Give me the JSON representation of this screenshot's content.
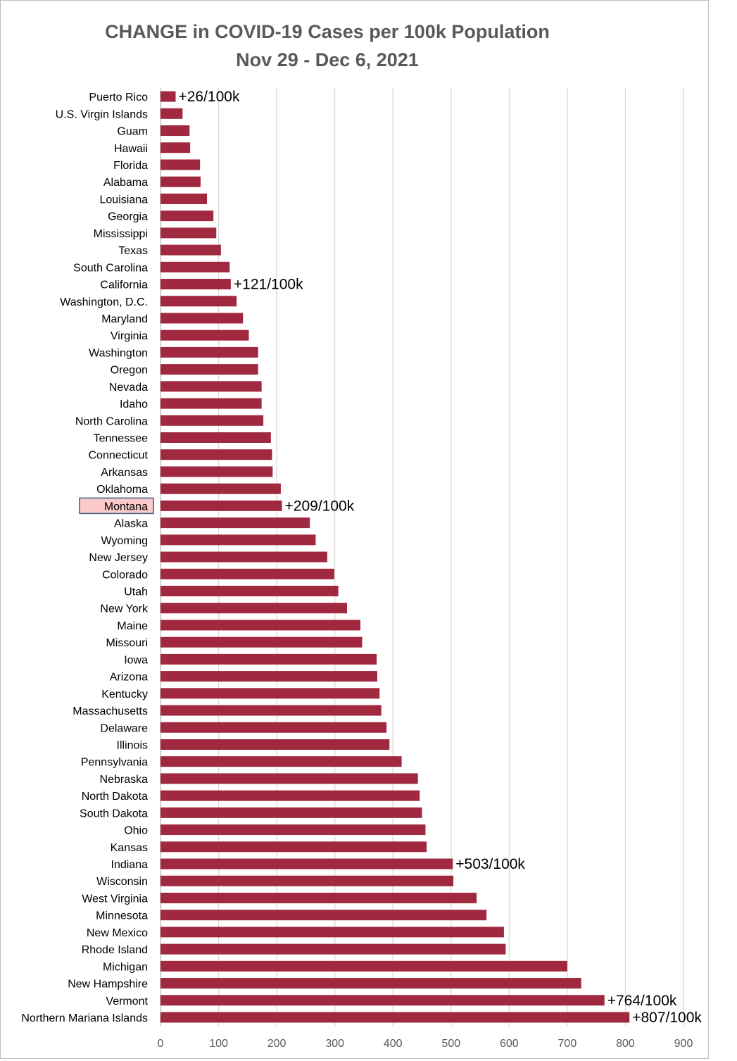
{
  "colors": {
    "bar": "#a0283f",
    "grid": "#d9d9d9",
    "title": "#595959",
    "highlight_fill": "#fcc9c9",
    "highlight_border": "#3a5a8c"
  },
  "chart_data": {
    "type": "bar",
    "orientation": "horizontal",
    "title": "CHANGE in COVID-19 Cases per 100k Population",
    "subtitle": "Nov 29 - Dec 6, 2021",
    "xlabel": "",
    "ylabel": "",
    "xlim": [
      0,
      900
    ],
    "xticks": [
      0,
      100,
      200,
      300,
      400,
      500,
      600,
      700,
      800,
      900
    ],
    "grid": true,
    "highlighted_category": "Montana",
    "categories": [
      "Puerto Rico",
      "U.S. Virgin Islands",
      "Guam",
      "Hawaii",
      "Florida",
      "Alabama",
      "Louisiana",
      "Georgia",
      "Mississippi",
      "Texas",
      "South Carolina",
      "California",
      "Washington, D.C.",
      "Maryland",
      "Virginia",
      "Washington",
      "Oregon",
      "Nevada",
      "Idaho",
      "North Carolina",
      "Tennessee",
      "Connecticut",
      "Arkansas",
      "Oklahoma",
      "Montana",
      "Alaska",
      "Wyoming",
      "New Jersey",
      "Colorado",
      "Utah",
      "New York",
      "Maine",
      "Missouri",
      "Iowa",
      "Arizona",
      "Kentucky",
      "Massachusetts",
      "Delaware",
      "Illinois",
      "Pennsylvania",
      "Nebraska",
      "North Dakota",
      "South Dakota",
      "Ohio",
      "Kansas",
      "Indiana",
      "Wisconsin",
      "West Virginia",
      "Minnesota",
      "New Mexico",
      "Rhode Island",
      "Michigan",
      "New Hampshire",
      "Vermont",
      "Northern Mariana Islands"
    ],
    "values": [
      26,
      38,
      50,
      51,
      68,
      69,
      80,
      91,
      96,
      104,
      119,
      121,
      131,
      142,
      152,
      168,
      168,
      174,
      174,
      177,
      190,
      192,
      193,
      207,
      209,
      257,
      267,
      287,
      299,
      306,
      321,
      344,
      347,
      372,
      373,
      377,
      380,
      389,
      394,
      415,
      443,
      446,
      450,
      456,
      458,
      503,
      504,
      544,
      561,
      591,
      594,
      700,
      724,
      764,
      807
    ],
    "annotations": [
      {
        "category": "Puerto Rico",
        "text": "+26/100k"
      },
      {
        "category": "California",
        "text": "+121/100k"
      },
      {
        "category": "Montana",
        "text": "+209/100k"
      },
      {
        "category": "Indiana",
        "text": "+503/100k"
      },
      {
        "category": "Vermont",
        "text": "+764/100k"
      },
      {
        "category": "Northern Mariana Islands",
        "text": "+807/100k"
      }
    ]
  }
}
